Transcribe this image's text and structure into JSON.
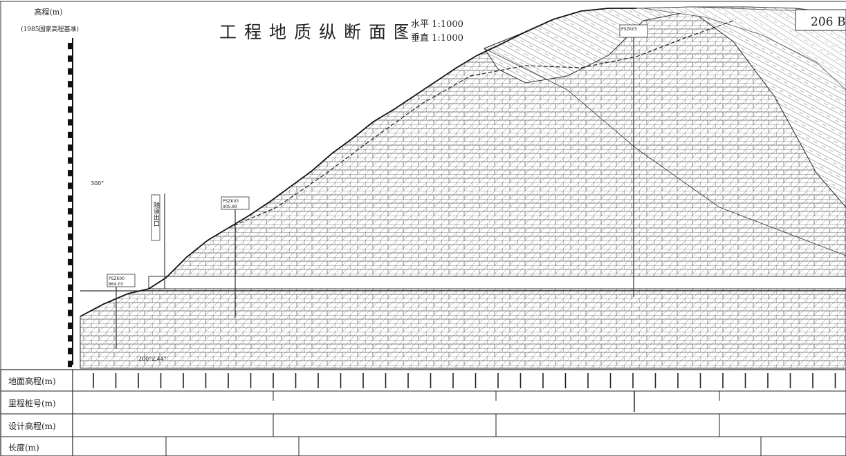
{
  "drawing": {
    "title": "工程地质纵断面图",
    "scale_horizontal": "水平 1:1000",
    "scale_vertical": "垂直 1:1000",
    "sheet_number": "206",
    "sheet_number_suffix": "B"
  },
  "elevation_axis": {
    "label": "高程(m)",
    "datum": "(1985国家高程基准)"
  },
  "annotations": {
    "dip_left": "300°",
    "dip_bottom": "200°∠44°"
  },
  "boreholes": [
    {
      "id": "PSZK00",
      "value": "864.03"
    },
    {
      "id": "PSZK03",
      "value": "905.80"
    },
    {
      "id": "PSZK05",
      "value": ""
    }
  ],
  "tunnel_marker": {
    "label": "隧道出口"
  },
  "bottom_table": {
    "rows": [
      {
        "label": "地面高程(m)"
      },
      {
        "label": "里程桩号(m)"
      },
      {
        "label": "设计高程(m)"
      },
      {
        "label": "长度(m)"
      }
    ]
  }
}
